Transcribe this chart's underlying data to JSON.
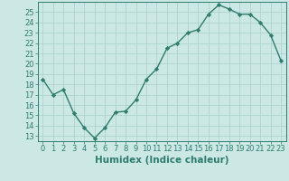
{
  "x": [
    0,
    1,
    2,
    3,
    4,
    5,
    6,
    7,
    8,
    9,
    10,
    11,
    12,
    13,
    14,
    15,
    16,
    17,
    18,
    19,
    20,
    21,
    22,
    23
  ],
  "y": [
    18.5,
    17.0,
    17.5,
    15.2,
    13.8,
    12.8,
    13.8,
    15.3,
    15.4,
    16.5,
    18.5,
    19.5,
    21.5,
    22.0,
    23.0,
    23.3,
    24.8,
    25.7,
    25.3,
    24.8,
    24.8,
    24.0,
    22.8,
    20.3
  ],
  "line_color": "#2e7d6e",
  "marker": "D",
  "markersize": 2.2,
  "linewidth": 1.0,
  "bg_color": "#cce8e4",
  "grid_color": "#aacfcb",
  "xlabel": "Humidex (Indice chaleur)",
  "xlim": [
    -0.5,
    23.5
  ],
  "ylim": [
    12.5,
    26.0
  ],
  "yticks": [
    13,
    14,
    15,
    16,
    17,
    18,
    19,
    20,
    21,
    22,
    23,
    24,
    25
  ],
  "xticks": [
    0,
    1,
    2,
    3,
    4,
    5,
    6,
    7,
    8,
    9,
    10,
    11,
    12,
    13,
    14,
    15,
    16,
    17,
    18,
    19,
    20,
    21,
    22,
    23
  ],
  "xlabel_fontsize": 7.5,
  "tick_fontsize": 6.0,
  "tick_color": "#2e7d6e",
  "spine_color": "#2e7d6e"
}
